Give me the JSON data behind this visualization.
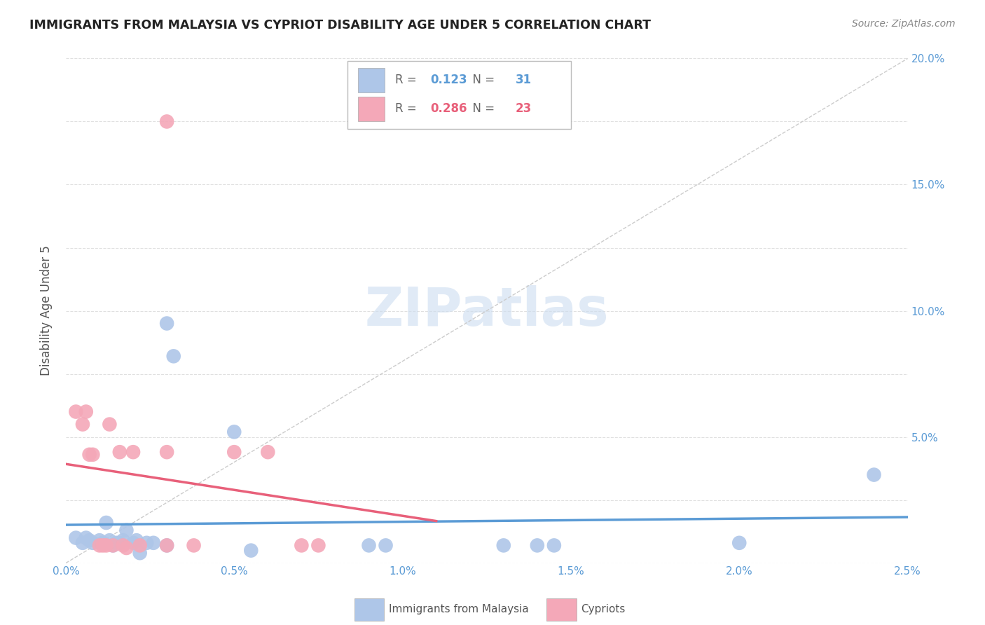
{
  "title": "IMMIGRANTS FROM MALAYSIA VS CYPRIOT DISABILITY AGE UNDER 5 CORRELATION CHART",
  "source": "Source: ZipAtlas.com",
  "ylabel": "Disability Age Under 5",
  "watermark": "ZIPatlas",
  "blue_label": "Immigrants from Malaysia",
  "pink_label": "Cypriots",
  "blue_R": "0.123",
  "blue_N": "31",
  "pink_R": "0.286",
  "pink_N": "23",
  "xlim": [
    0.0,
    0.025
  ],
  "ylim": [
    0.0,
    0.2
  ],
  "xticks": [
    0.0,
    0.005,
    0.01,
    0.015,
    0.02,
    0.025
  ],
  "xtick_labels": [
    "0.0%",
    "0.5%",
    "1.0%",
    "1.5%",
    "2.0%",
    "2.5%"
  ],
  "yticks": [
    0.0,
    0.025,
    0.05,
    0.075,
    0.1,
    0.125,
    0.15,
    0.175,
    0.2
  ],
  "ytick_labels": [
    "",
    "",
    "5.0%",
    "",
    "10.0%",
    "",
    "15.0%",
    "",
    "20.0%"
  ],
  "blue_color": "#aec6e8",
  "pink_color": "#f4a8b8",
  "blue_line_color": "#5b9bd5",
  "pink_line_color": "#e8607a",
  "blue_x": [
    0.0003,
    0.0005,
    0.0006,
    0.0007,
    0.0008,
    0.001,
    0.0011,
    0.0012,
    0.0013,
    0.0014,
    0.0015,
    0.0016,
    0.0017,
    0.0018,
    0.002,
    0.0021,
    0.0022,
    0.0024,
    0.0026,
    0.003,
    0.003,
    0.0032,
    0.005,
    0.0055,
    0.009,
    0.0095,
    0.013,
    0.014,
    0.0145,
    0.02,
    0.024
  ],
  "blue_y": [
    0.01,
    0.008,
    0.01,
    0.009,
    0.008,
    0.009,
    0.008,
    0.016,
    0.009,
    0.007,
    0.008,
    0.008,
    0.009,
    0.013,
    0.008,
    0.009,
    0.004,
    0.008,
    0.008,
    0.095,
    0.007,
    0.082,
    0.052,
    0.005,
    0.007,
    0.007,
    0.007,
    0.007,
    0.007,
    0.008,
    0.035
  ],
  "pink_x": [
    0.0003,
    0.0005,
    0.0006,
    0.0007,
    0.0008,
    0.001,
    0.0011,
    0.0012,
    0.0013,
    0.0014,
    0.0016,
    0.0017,
    0.0018,
    0.002,
    0.0022,
    0.003,
    0.003,
    0.0038,
    0.005,
    0.006,
    0.007,
    0.0075,
    0.003
  ],
  "pink_y": [
    0.06,
    0.055,
    0.06,
    0.043,
    0.043,
    0.007,
    0.007,
    0.007,
    0.055,
    0.007,
    0.044,
    0.007,
    0.006,
    0.044,
    0.007,
    0.007,
    0.044,
    0.007,
    0.044,
    0.044,
    0.007,
    0.007,
    0.175
  ]
}
